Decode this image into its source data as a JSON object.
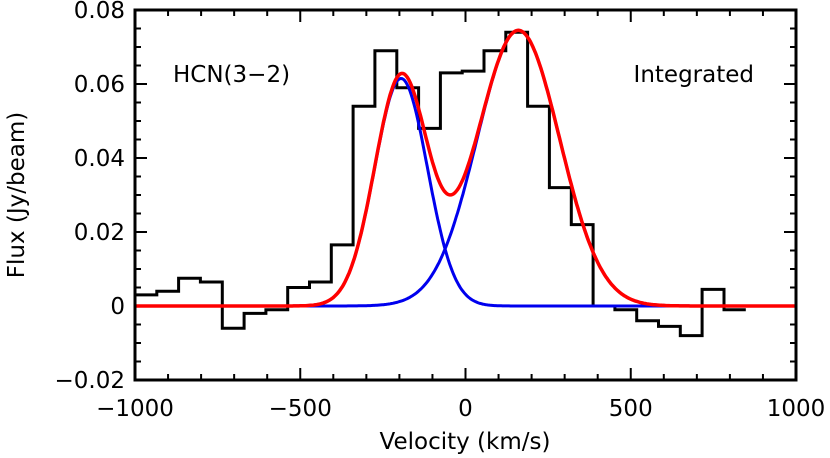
{
  "chart_data": {
    "type": "line",
    "title": "",
    "xlabel": "Velocity (km/s)",
    "ylabel": "Flux (Jy/beam)",
    "xlim": [
      -1000,
      1000
    ],
    "ylim": [
      -0.02,
      0.08
    ],
    "x_ticks": [
      -1000,
      -500,
      0,
      500,
      1000
    ],
    "x_tick_labels": [
      "−1000",
      "−500",
      "0",
      "500",
      "1000"
    ],
    "y_ticks": [
      -0.02,
      0,
      0.02,
      0.04,
      0.06,
      0.08
    ],
    "y_tick_labels": [
      "−0.02",
      "0",
      "0.02",
      "0.04",
      "0.06",
      "0.08"
    ],
    "annotations": [
      "HCN(3−2)",
      "Integrated"
    ],
    "grid": false,
    "series": [
      {
        "style": "histogram",
        "color": "#000000",
        "bin_width": 66,
        "bin_centers": [
          -967,
          -901,
          -835,
          -769,
          -703,
          -637,
          -571,
          -505,
          -439,
          -373,
          -307,
          -241,
          -175,
          -109,
          -43,
          23,
          89,
          155,
          221,
          287,
          353,
          419,
          485,
          551,
          617,
          683,
          749,
          815
        ],
        "values": [
          0.003,
          0.004,
          0.0075,
          0.0065,
          -0.006,
          -0.002,
          -0.001,
          0.005,
          0.0065,
          0.0165,
          0.054,
          0.069,
          0.059,
          0.048,
          0.063,
          0.0635,
          0.069,
          0.074,
          0.054,
          0.032,
          0.022,
          0.0,
          -0.001,
          -0.004,
          -0.0055,
          -0.008,
          0.0045,
          -0.001
        ]
      },
      {
        "style": "gaussian",
        "color": "#0000ee",
        "amplitude": 0.0615,
        "center": -195,
        "sigma": 80
      },
      {
        "style": "gaussian",
        "color": "#0000ee",
        "amplitude": 0.0745,
        "center": 160,
        "sigma": 125
      },
      {
        "style": "gaussian-sum",
        "color": "#ff0000"
      }
    ]
  }
}
